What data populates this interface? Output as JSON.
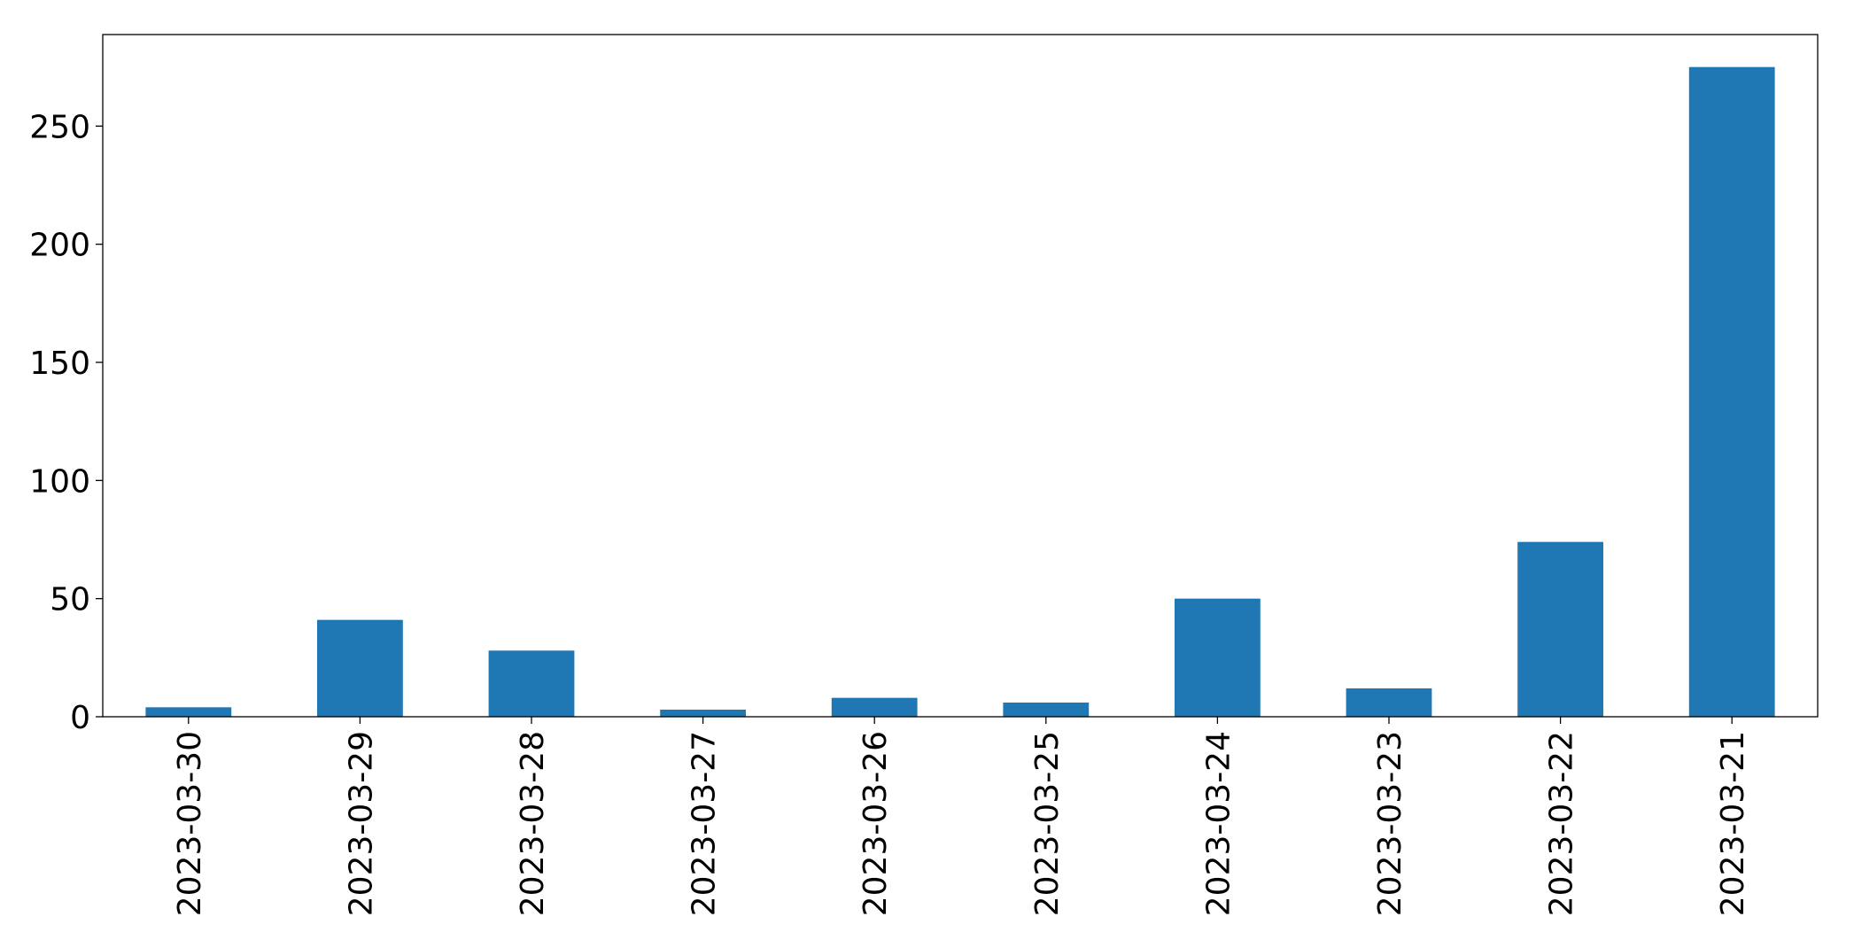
{
  "chart_data": {
    "type": "bar",
    "categories": [
      "2023-03-30",
      "2023-03-29",
      "2023-03-28",
      "2023-03-27",
      "2023-03-26",
      "2023-03-25",
      "2023-03-24",
      "2023-03-23",
      "2023-03-22",
      "2023-03-21"
    ],
    "values": [
      4,
      41,
      28,
      3,
      8,
      6,
      50,
      12,
      74,
      275
    ],
    "color": "#1f77b4",
    "ylim": [
      0,
      288.75
    ],
    "yticks": [
      0,
      50,
      100,
      150,
      200,
      250
    ],
    "grid": false
  }
}
